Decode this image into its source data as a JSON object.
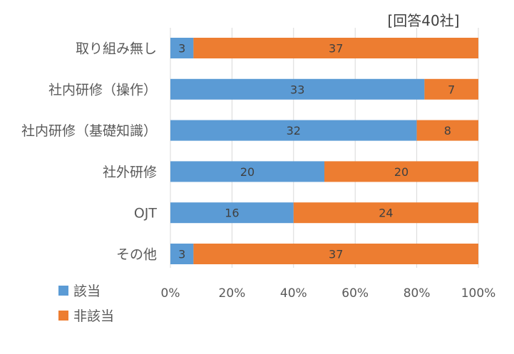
{
  "chart_data": {
    "type": "bar",
    "orientation": "horizontal",
    "stacked": "percent",
    "note": "[回答40社]",
    "categories": [
      "取り組み無し",
      "社内研修（操作）",
      "社内研修（基礎知識）",
      "社外研修",
      "OJT",
      "その他"
    ],
    "series": [
      {
        "name": "該当",
        "values": [
          3,
          33,
          32,
          20,
          16,
          3
        ],
        "color": "#5B9BD5"
      },
      {
        "name": "非該当",
        "values": [
          37,
          7,
          8,
          20,
          24,
          37
        ],
        "color": "#ED7D31"
      }
    ],
    "x_ticks": [
      "0%",
      "20%",
      "40%",
      "60%",
      "80%",
      "100%"
    ],
    "xlim": [
      0,
      100
    ],
    "grid": true,
    "legend_position": "bottom-left",
    "label_color": "#595959",
    "grid_color": "#D9D9D9",
    "data_label_color": "#404040"
  }
}
